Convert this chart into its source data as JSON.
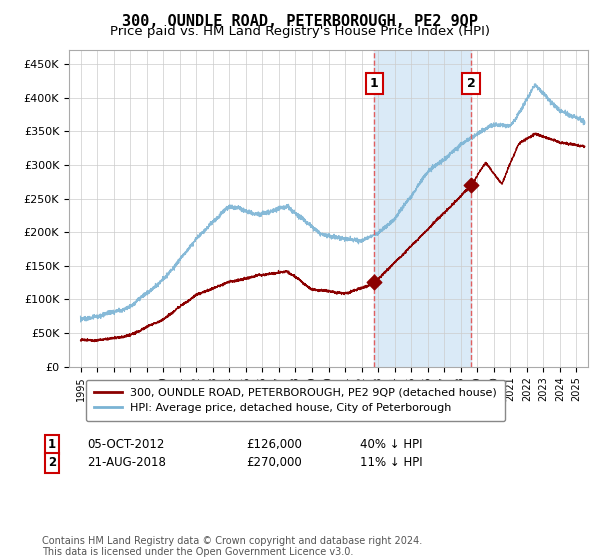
{
  "title": "300, OUNDLE ROAD, PETERBOROUGH, PE2 9QP",
  "subtitle": "Price paid vs. HM Land Registry's House Price Index (HPI)",
  "title_fontsize": 11,
  "subtitle_fontsize": 9.5,
  "background_color": "#ffffff",
  "plot_bg_color": "#ffffff",
  "grid_color": "#cccccc",
  "ylim": [
    0,
    470000
  ],
  "yticks": [
    0,
    50000,
    100000,
    150000,
    200000,
    250000,
    300000,
    350000,
    400000,
    450000
  ],
  "ytick_labels": [
    "£0",
    "£50K",
    "£100K",
    "£150K",
    "£200K",
    "£250K",
    "£300K",
    "£350K",
    "£400K",
    "£450K"
  ],
  "sale1_x": 2012.77,
  "sale1_y": 126000,
  "sale2_x": 2018.63,
  "sale2_y": 270000,
  "sale_color": "#8b0000",
  "hpi_color": "#7ab3d4",
  "hpi_fill_color": "#daeaf7",
  "vline_color": "#e06060",
  "legend_entries": [
    "300, OUNDLE ROAD, PETERBOROUGH, PE2 9QP (detached house)",
    "HPI: Average price, detached house, City of Peterborough"
  ],
  "annotation1": [
    "1",
    "05-OCT-2012",
    "£126,000",
    "40% ↓ HPI"
  ],
  "annotation2": [
    "2",
    "21-AUG-2018",
    "£270,000",
    "11% ↓ HPI"
  ],
  "footer": "Contains HM Land Registry data © Crown copyright and database right 2024.\nThis data is licensed under the Open Government Licence v3.0.",
  "xlim_left": 1994.3,
  "xlim_right": 2025.7
}
